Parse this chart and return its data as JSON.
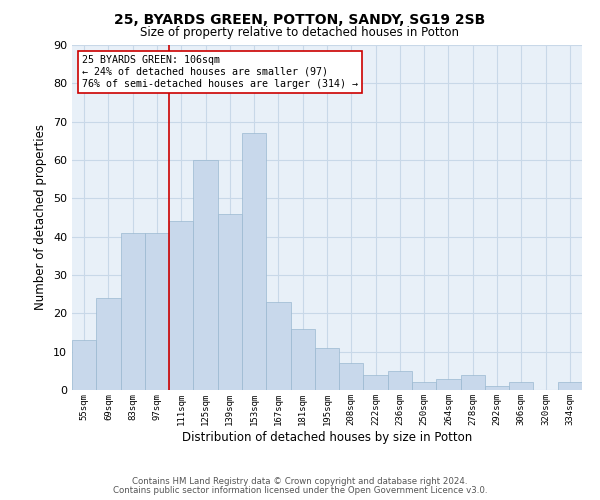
{
  "title1": "25, BYARDS GREEN, POTTON, SANDY, SG19 2SB",
  "title2": "Size of property relative to detached houses in Potton",
  "xlabel": "Distribution of detached houses by size in Potton",
  "ylabel": "Number of detached properties",
  "bin_labels": [
    "55sqm",
    "69sqm",
    "83sqm",
    "97sqm",
    "111sqm",
    "125sqm",
    "139sqm",
    "153sqm",
    "167sqm",
    "181sqm",
    "195sqm",
    "208sqm",
    "222sqm",
    "236sqm",
    "250sqm",
    "264sqm",
    "278sqm",
    "292sqm",
    "306sqm",
    "320sqm",
    "334sqm"
  ],
  "bar_heights": [
    13,
    24,
    41,
    41,
    44,
    60,
    46,
    67,
    23,
    16,
    11,
    7,
    4,
    5,
    2,
    3,
    4,
    1,
    2,
    0,
    2
  ],
  "bar_color": "#c8d8eb",
  "bar_edge_color": "#9ab8d0",
  "vline_x": 3.5,
  "vline_color": "#cc0000",
  "ylim": [
    0,
    90
  ],
  "yticks": [
    0,
    10,
    20,
    30,
    40,
    50,
    60,
    70,
    80,
    90
  ],
  "annotation_title": "25 BYARDS GREEN: 106sqm",
  "annotation_line1": "← 24% of detached houses are smaller (97)",
  "annotation_line2": "76% of semi-detached houses are larger (314) →",
  "annotation_box_color": "#ffffff",
  "annotation_box_edge": "#cc0000",
  "footnote1": "Contains HM Land Registry data © Crown copyright and database right 2024.",
  "footnote2": "Contains public sector information licensed under the Open Government Licence v3.0.",
  "bg_color": "#ffffff",
  "grid_color": "#c8d8e8",
  "plot_bg_color": "#e8f0f8"
}
